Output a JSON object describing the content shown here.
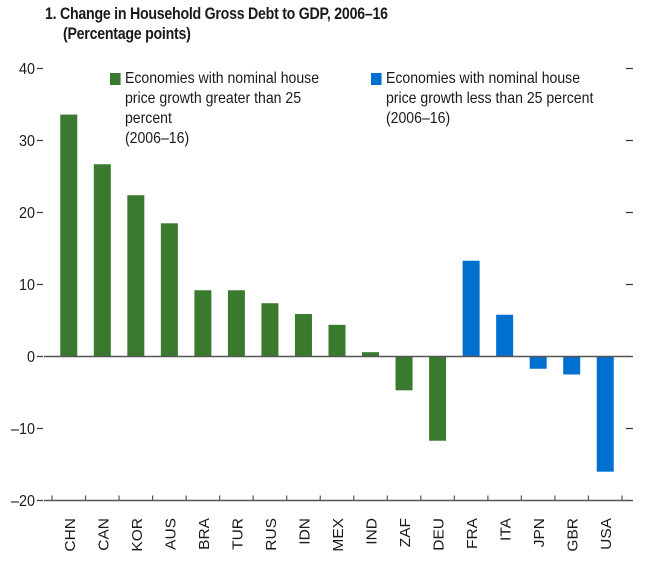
{
  "chart_data": {
    "type": "bar",
    "title": "1. Change in Household Gross Debt to GDP, 2006–16",
    "subtitle": "(Percentage points)",
    "xlabel": "",
    "ylabel": "",
    "ylim": [
      -20,
      40
    ],
    "yticks": [
      40,
      30,
      20,
      10,
      0,
      -10,
      -20
    ],
    "ytick_labels": [
      "40",
      "30",
      "20",
      "10",
      "0",
      "–10",
      "–20"
    ],
    "grid": false,
    "legend_placement": "top",
    "categories": [
      "CHN",
      "CAN",
      "KOR",
      "AUS",
      "BRA",
      "TUR",
      "RUS",
      "IDN",
      "MEX",
      "IND",
      "ZAF",
      "DEU",
      "FRA",
      "ITA",
      "JPN",
      "GBR",
      "USA"
    ],
    "series": [
      {
        "name": "Economies with nominal house price growth greater than 25 percent (2006–16)",
        "color": "#3a7a2e",
        "categories": [
          "CHN",
          "CAN",
          "KOR",
          "AUS",
          "BRA",
          "TUR",
          "RUS",
          "IDN",
          "MEX",
          "IND",
          "ZAF",
          "DEU"
        ],
        "values": [
          33.6,
          26.7,
          22.4,
          18.5,
          9.2,
          9.2,
          7.4,
          5.9,
          4.4,
          0.6,
          -4.7,
          -11.7
        ]
      },
      {
        "name": "Economies with nominal house price growth less than 25 percent (2006–16)",
        "color": "#0070d0",
        "categories": [
          "FRA",
          "ITA",
          "JPN",
          "GBR",
          "USA"
        ],
        "values": [
          13.3,
          5.8,
          -1.7,
          -2.5,
          -16.0
        ]
      }
    ],
    "legend": [
      {
        "lines": [
          "Economies with nominal house",
          "price growth greater than 25",
          "percent",
          "(2006–16)"
        ],
        "color": "#3a7a2e"
      },
      {
        "lines": [
          "Economies with nominal house",
          "price growth less than 25 percent",
          "(2006–16)"
        ],
        "color": "#0070d0"
      }
    ]
  }
}
